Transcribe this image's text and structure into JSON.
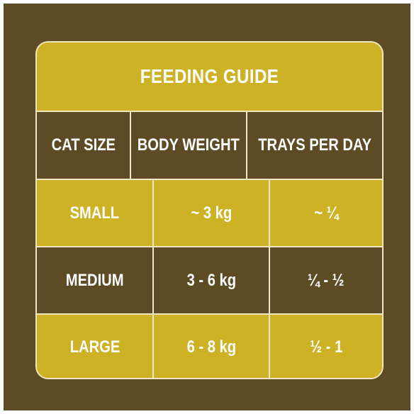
{
  "title": "FEEDING GUIDE",
  "headers": [
    "CAT SIZE",
    "BODY WEIGHT",
    "TRAYS PER DAY"
  ],
  "rows": [
    [
      "SMALL",
      "~ 3 kg",
      "~ ¼"
    ],
    [
      "MEDIUM",
      "3 - 6 kg",
      "¼ - ½"
    ],
    [
      "LARGE",
      "6 - 8 kg",
      "½ - 1"
    ]
  ],
  "colors": {
    "frame": "#5c4b24",
    "gold": "#cdb226",
    "border": "#efe6c2",
    "text": "#ffffff"
  }
}
